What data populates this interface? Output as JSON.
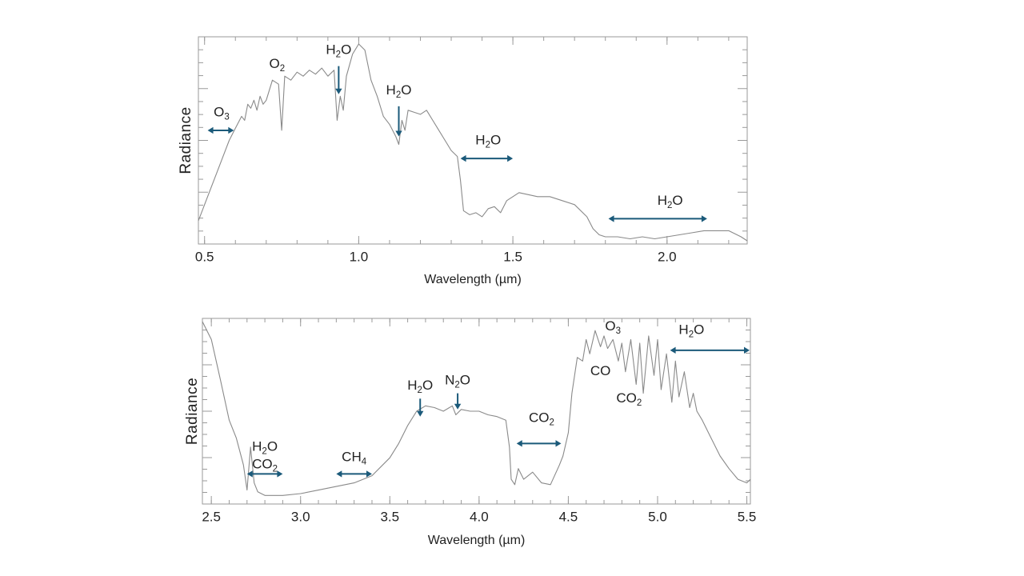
{
  "arrow_color": "#1b5a7a",
  "line_color": "#8a8a8a",
  "chart_data": [
    {
      "type": "line",
      "xlabel": "Wavelength (µm)",
      "ylabel": "Radiance",
      "xlim": [
        0.48,
        2.26
      ],
      "ylim": [
        0,
        1
      ],
      "xticks": [
        "0.5",
        "1.0",
        "1.5",
        "2.0"
      ],
      "xtick_values": [
        0.5,
        1.0,
        1.5,
        2.0
      ],
      "y_tick_labels": "none",
      "series": [
        {
          "x": [
            0.48,
            0.5,
            0.52,
            0.54,
            0.56,
            0.58,
            0.6,
            0.62,
            0.63,
            0.64,
            0.65,
            0.66,
            0.67,
            0.68,
            0.69,
            0.7,
            0.72,
            0.74,
            0.75,
            0.76,
            0.78,
            0.8,
            0.82,
            0.84,
            0.86,
            0.88,
            0.9,
            0.92,
            0.93,
            0.94,
            0.95,
            0.96,
            0.98,
            1.0,
            1.02,
            1.04,
            1.06,
            1.08,
            1.1,
            1.12,
            1.13,
            1.14,
            1.15,
            1.16,
            1.18,
            1.2,
            1.22,
            1.24,
            1.26,
            1.28,
            1.3,
            1.32,
            1.33,
            1.34,
            1.36,
            1.38,
            1.4,
            1.42,
            1.44,
            1.46,
            1.48,
            1.5,
            1.52,
            1.55,
            1.58,
            1.62,
            1.66,
            1.7,
            1.74,
            1.76,
            1.78,
            1.8,
            1.84,
            1.88,
            1.92,
            1.96,
            2.0,
            2.04,
            2.08,
            2.12,
            2.16,
            2.2,
            2.24,
            2.26
          ],
          "y": [
            0.1,
            0.18,
            0.26,
            0.34,
            0.42,
            0.5,
            0.56,
            0.62,
            0.6,
            0.68,
            0.66,
            0.7,
            0.65,
            0.72,
            0.68,
            0.7,
            0.8,
            0.78,
            0.55,
            0.82,
            0.8,
            0.84,
            0.82,
            0.85,
            0.83,
            0.86,
            0.82,
            0.85,
            0.6,
            0.72,
            0.65,
            0.82,
            0.93,
            0.98,
            0.95,
            0.8,
            0.72,
            0.62,
            0.58,
            0.52,
            0.48,
            0.6,
            0.55,
            0.65,
            0.64,
            0.63,
            0.65,
            0.6,
            0.55,
            0.5,
            0.45,
            0.42,
            0.3,
            0.15,
            0.13,
            0.14,
            0.12,
            0.16,
            0.17,
            0.14,
            0.2,
            0.22,
            0.24,
            0.23,
            0.22,
            0.22,
            0.2,
            0.18,
            0.12,
            0.06,
            0.03,
            0.02,
            0.02,
            0.01,
            0.02,
            0.01,
            0.02,
            0.03,
            0.04,
            0.05,
            0.05,
            0.05,
            0.02,
            0.0
          ]
        }
      ],
      "annotations": [
        {
          "label": "O",
          "sub": "3",
          "x": 0.555,
          "y": 0.62,
          "kind": "h-arrow",
          "x1": 0.51,
          "x2": 0.595,
          "ay": 0.55
        },
        {
          "label": "O",
          "sub": "2",
          "x": 0.735,
          "y": 0.86,
          "kind": "none"
        },
        {
          "label": "H",
          "sub": "2",
          "tail": "O",
          "x": 0.935,
          "y": 0.93,
          "kind": "v-arrow",
          "ax": 0.935,
          "ay1": 0.87,
          "ay2": 0.73
        },
        {
          "label": "H",
          "sub": "2",
          "tail": "O",
          "x": 1.13,
          "y": 0.73,
          "kind": "v-arrow",
          "ax": 1.13,
          "ay1": 0.67,
          "ay2": 0.52
        },
        {
          "label": "H",
          "sub": "2",
          "tail": "O",
          "x": 1.42,
          "y": 0.48,
          "kind": "h-arrow",
          "x1": 1.33,
          "x2": 1.5,
          "ay": 0.41
        },
        {
          "label": "H",
          "sub": "2",
          "tail": "O",
          "x": 2.01,
          "y": 0.18,
          "kind": "h-arrow",
          "x1": 1.81,
          "x2": 2.13,
          "ay": 0.11
        }
      ]
    },
    {
      "type": "line",
      "xlabel": "Wavelength (µm)",
      "ylabel": "Radiance",
      "xlim": [
        2.45,
        5.52
      ],
      "ylim": [
        0,
        1
      ],
      "xticks": [
        "2.5",
        "3.0",
        "3.5",
        "4.0",
        "4.5",
        "5.0",
        "5.5"
      ],
      "xtick_values": [
        2.5,
        3.0,
        3.5,
        4.0,
        4.5,
        5.0,
        5.5
      ],
      "y_tick_labels": "none",
      "series": [
        {
          "x": [
            2.45,
            2.5,
            2.55,
            2.6,
            2.64,
            2.68,
            2.7,
            2.72,
            2.74,
            2.76,
            2.78,
            2.8,
            2.9,
            3.0,
            3.1,
            3.2,
            3.3,
            3.4,
            3.5,
            3.55,
            3.6,
            3.65,
            3.7,
            3.75,
            3.8,
            3.85,
            3.87,
            3.9,
            3.95,
            4.0,
            4.05,
            4.1,
            4.15,
            4.17,
            4.18,
            4.2,
            4.22,
            4.25,
            4.3,
            4.35,
            4.4,
            4.45,
            4.47,
            4.5,
            4.52,
            4.55,
            4.58,
            4.6,
            4.62,
            4.65,
            4.68,
            4.7,
            4.72,
            4.75,
            4.78,
            4.8,
            4.82,
            4.85,
            4.88,
            4.9,
            4.92,
            4.95,
            4.98,
            5.0,
            5.02,
            5.05,
            5.08,
            5.1,
            5.12,
            5.15,
            5.18,
            5.2,
            5.22,
            5.25,
            5.3,
            5.35,
            5.4,
            5.45,
            5.5,
            5.52
          ],
          "y": [
            1.0,
            0.9,
            0.68,
            0.45,
            0.35,
            0.2,
            0.06,
            0.3,
            0.1,
            0.05,
            0.04,
            0.03,
            0.03,
            0.04,
            0.06,
            0.08,
            0.1,
            0.14,
            0.24,
            0.32,
            0.42,
            0.5,
            0.53,
            0.52,
            0.5,
            0.53,
            0.48,
            0.51,
            0.5,
            0.5,
            0.48,
            0.47,
            0.45,
            0.3,
            0.12,
            0.09,
            0.18,
            0.12,
            0.16,
            0.1,
            0.09,
            0.2,
            0.25,
            0.38,
            0.6,
            0.8,
            0.78,
            0.9,
            0.82,
            0.95,
            0.86,
            0.92,
            0.85,
            0.9,
            0.78,
            0.88,
            0.72,
            0.9,
            0.65,
            0.88,
            0.6,
            0.92,
            0.7,
            0.9,
            0.62,
            0.82,
            0.55,
            0.78,
            0.58,
            0.72,
            0.52,
            0.6,
            0.5,
            0.45,
            0.35,
            0.25,
            0.18,
            0.12,
            0.1,
            0.12
          ]
        }
      ],
      "annotations": [
        {
          "label": "H",
          "sub": "2",
          "tail": "O",
          "line2": "CO",
          "sub2": "2",
          "x": 2.8,
          "y": 0.28,
          "kind": "h-arrow",
          "x1": 2.7,
          "x2": 2.9,
          "ay": 0.15
        },
        {
          "label": "CH",
          "sub": "4",
          "x": 3.3,
          "y": 0.22,
          "kind": "h-arrow",
          "x1": 3.2,
          "x2": 3.4,
          "ay": 0.15
        },
        {
          "label": "H",
          "sub": "2",
          "tail": "O",
          "x": 3.67,
          "y": 0.62,
          "kind": "v-arrow",
          "ax": 3.67,
          "ay1": 0.57,
          "ay2": 0.47
        },
        {
          "label": "N",
          "sub": "2",
          "tail": "O",
          "x": 3.88,
          "y": 0.65,
          "kind": "v-arrow",
          "ax": 3.88,
          "ay1": 0.6,
          "ay2": 0.51
        },
        {
          "label": "CO",
          "sub": "2",
          "x": 4.35,
          "y": 0.44,
          "kind": "h-arrow",
          "x1": 4.21,
          "x2": 4.46,
          "ay": 0.32
        },
        {
          "label": "O",
          "sub": "3",
          "x": 4.75,
          "y": 0.95,
          "kind": "none"
        },
        {
          "label": "CO",
          "x": 4.68,
          "y": 0.7,
          "kind": "none"
        },
        {
          "label": "CO",
          "sub": "2",
          "x": 4.84,
          "y": 0.55,
          "kind": "none"
        },
        {
          "label": "H",
          "sub": "2",
          "tail": "O",
          "x": 5.19,
          "y": 0.93,
          "kind": "h-arrow",
          "x1": 5.07,
          "x2": 5.52,
          "ay": 0.84
        }
      ]
    }
  ]
}
